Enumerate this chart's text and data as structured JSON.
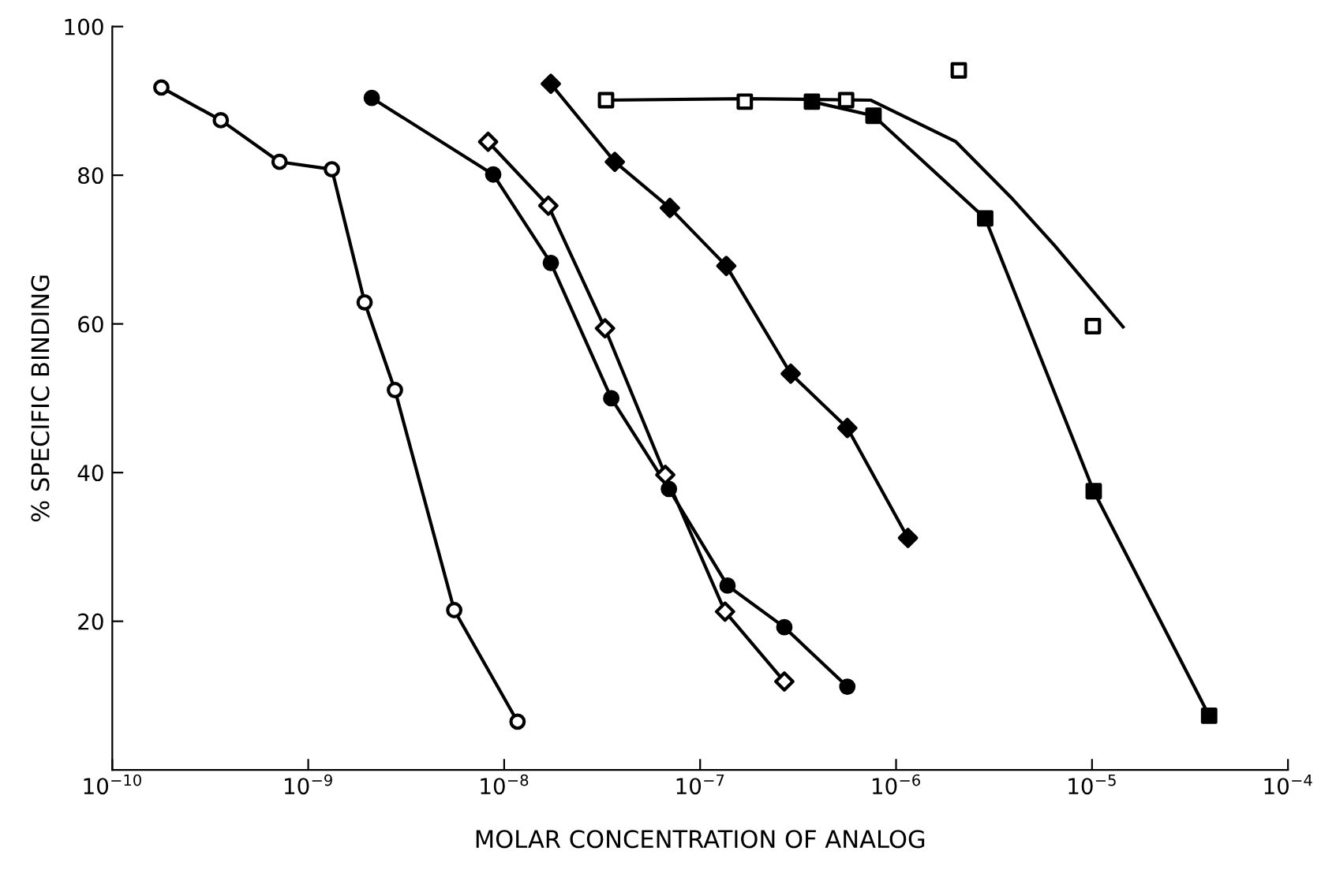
{
  "chart_data": {
    "type": "line",
    "xlabel": "MOLAR CONCENTRATION OF ANALOG",
    "ylabel": "% SPECIFIC BINDING",
    "log": "x",
    "grid": false,
    "legend": false,
    "xlim": [
      1e-10,
      0.0001
    ],
    "ylim": [
      0,
      100
    ],
    "xticks": [
      {
        "value": 1e-10,
        "label": "10$^{−10}$"
      },
      {
        "value": 1e-09,
        "label": "10$^{−9}$"
      },
      {
        "value": 1e-08,
        "label": "10$^{−8}$"
      },
      {
        "value": 1e-07,
        "label": "10$^{−7}$"
      },
      {
        "value": 1e-06,
        "label": "10$^{−6}$"
      },
      {
        "value": 1e-05,
        "label": "10$^{−5}$"
      },
      {
        "value": 0.0001,
        "label": "10$^{−4}$"
      }
    ],
    "yticks": [
      20,
      40,
      60,
      80,
      100
    ],
    "series": [
      {
        "marker": "circle",
        "color": "#000000",
        "colors": [
          "#ffffff",
          "#ffffff",
          "#ffffff",
          "#ffffff",
          "#ffffff",
          "#ffffff",
          "#ffffff",
          "#ffffff"
        ],
        "x": [
          1.78e-10,
          3.58e-10,
          7.14e-10,
          1.32e-09,
          1.94e-09,
          2.77e-09,
          5.56e-09,
          1.17e-08
        ],
        "values": [
          91.8,
          87.4,
          81.8,
          80.8,
          62.9,
          51.1,
          21.5,
          6.5
        ]
      },
      {
        "marker": "circle",
        "color": "#000000",
        "x": [
          2.11e-09,
          8.79e-09,
          1.73e-08,
          3.52e-08,
          6.93e-08,
          1.38e-07,
          2.69e-07,
          5.64e-07
        ],
        "values": [
          90.4,
          80.1,
          68.2,
          50.0,
          37.8,
          24.8,
          19.2,
          11.2
        ]
      },
      {
        "marker": "diamond",
        "color": "#000000",
        "colors": [
          "#ffffff",
          "#ffffff",
          "#ffffff",
          "#ffffff",
          "#ffffff",
          "#ffffff"
        ],
        "x": [
          8.28e-09,
          1.68e-08,
          3.27e-08,
          6.64e-08,
          1.34e-07,
          2.69e-07
        ],
        "values": [
          84.5,
          75.9,
          59.4,
          39.7,
          21.3,
          11.9
        ]
      },
      {
        "marker": "diamond",
        "color": "#000000",
        "x": [
          1.73e-08,
          3.67e-08,
          7.01e-08,
          1.36e-07,
          2.9e-07,
          5.64e-07,
          1.15e-06
        ],
        "values": [
          92.3,
          81.8,
          75.6,
          67.8,
          53.3,
          46.0,
          31.2
        ]
      },
      {
        "type": "scatter",
        "marker": "square",
        "color": "#000000",
        "colors": [
          "#ffffff",
          "#ffffff",
          "#ffffff",
          "#ffffff",
          "#ffffff"
        ],
        "x": [
          3.31e-08,
          1.69e-07,
          5.56e-07,
          2.09e-06,
          1.01e-05
        ],
        "values": [
          90.1,
          89.9,
          90.1,
          94.1,
          59.7
        ]
      },
      {
        "marker": "none",
        "color": "#000000",
        "x": [
          3.31e-08,
          1.69e-07,
          7.41e-07,
          2.02e-06,
          3.93e-06,
          6.46e-06,
          1.44e-05
        ],
        "values": [
          90.1,
          90.3,
          90.1,
          84.5,
          76.8,
          70.5,
          59.6
        ]
      },
      {
        "marker": "square",
        "color": "#000000",
        "x": [
          3.72e-07,
          7.67e-07,
          2.85e-06,
          1.02e-05,
          3.96e-05
        ],
        "values": [
          89.9,
          88.0,
          74.2,
          37.5,
          7.3
        ]
      }
    ]
  }
}
